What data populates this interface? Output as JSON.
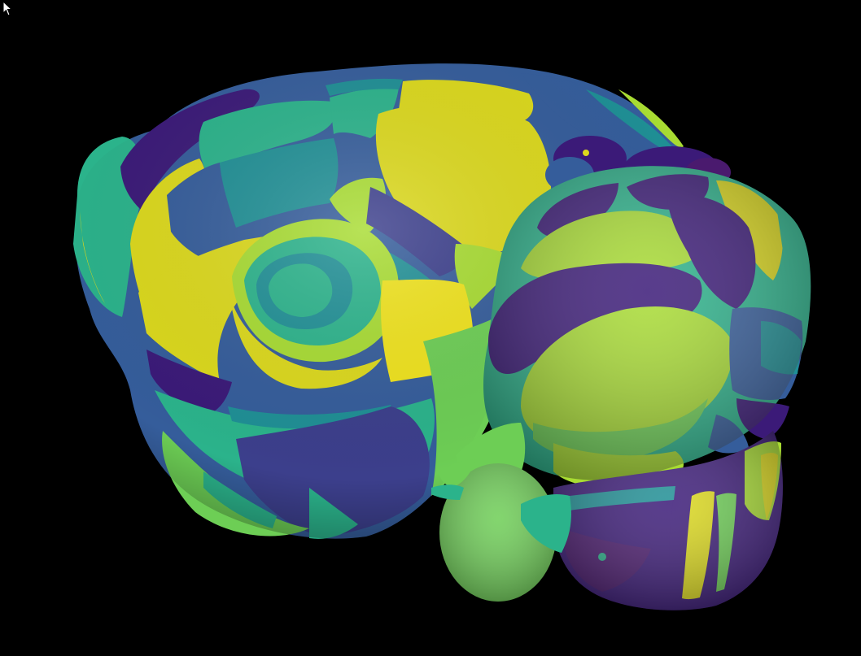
{
  "viewer": {
    "background": "#000000",
    "palette": {
      "dark_purple": "#3b1a78",
      "indigo": "#3c3f8c",
      "blue": "#355d9b",
      "teal": "#1f8f95",
      "sea_green": "#2bb38b",
      "green": "#6dce55",
      "lime": "#a8dc32",
      "yellow": "#dcd91c"
    },
    "cursor_icon": "arrow-cursor-icon"
  }
}
